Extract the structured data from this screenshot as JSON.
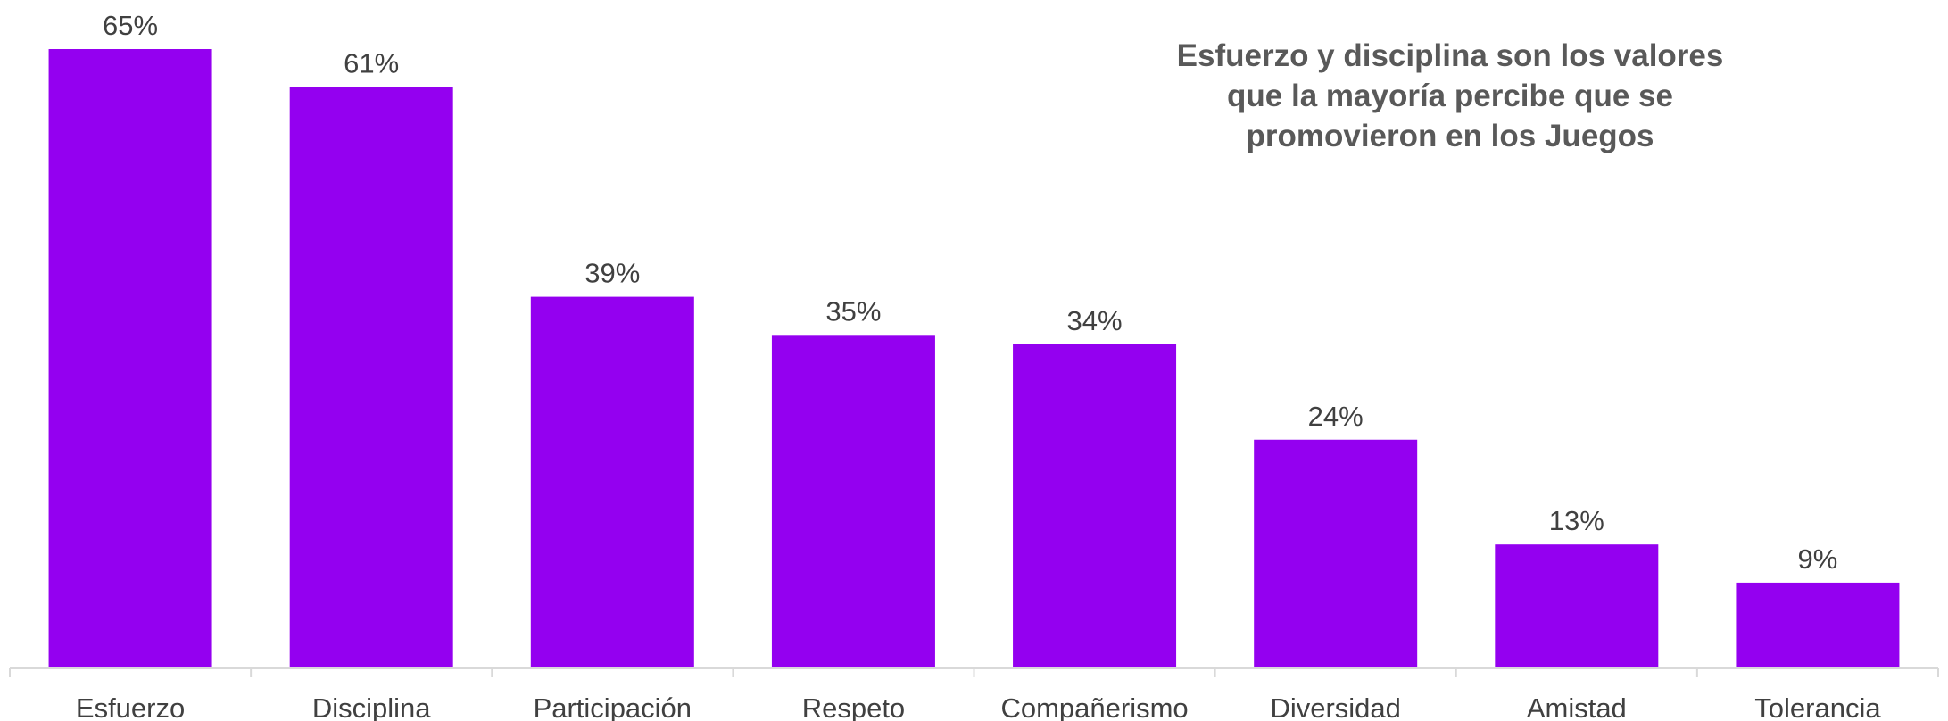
{
  "chart_data": {
    "type": "bar",
    "title_lines": [
      "Esfuerzo y disciplina son los valores",
      "que la mayoría percibe que se",
      "promovieron en los Juegos"
    ],
    "categories": [
      "Esfuerzo",
      "Disciplina",
      "Participación",
      "Respeto",
      "Compañerismo",
      "Diversidad",
      "Amistad",
      "Tolerancia"
    ],
    "values": [
      65,
      61,
      39,
      35,
      34,
      24,
      13,
      9
    ],
    "data_labels": [
      "65%",
      "61%",
      "39%",
      "35%",
      "34%",
      "24%",
      "13%",
      "9%"
    ],
    "ylim": [
      0,
      65
    ],
    "grid": false,
    "legend": "none",
    "bar_color": "#9400F0",
    "axis_color": "#D9D9D9"
  }
}
